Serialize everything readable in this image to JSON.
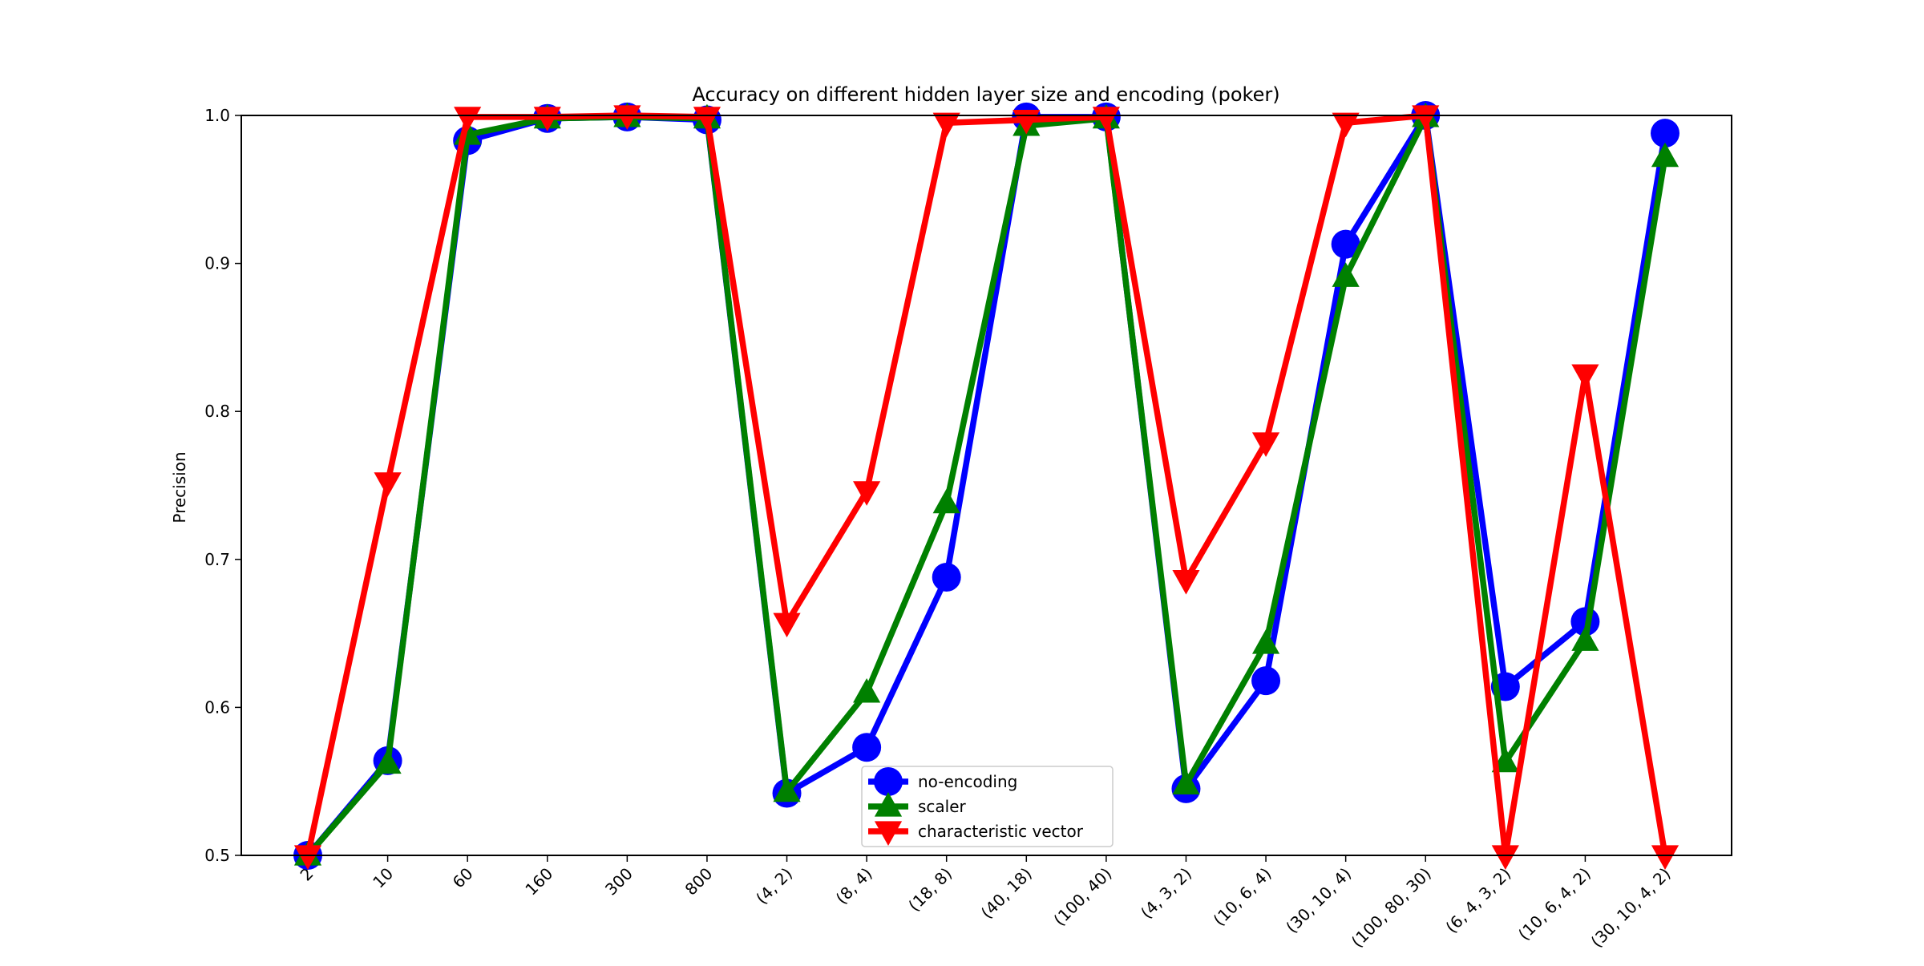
{
  "chart_data": {
    "type": "line",
    "title": "Accuracy on different hidden layer size and encoding (poker)",
    "xlabel": "",
    "ylabel": "Precision",
    "ylim": [
      0.5,
      1.0
    ],
    "yticks": [
      "0.5",
      "0.6",
      "0.7",
      "0.8",
      "0.9",
      "1.0"
    ],
    "grid": false,
    "legend_position": "bottom-center",
    "categories": [
      "2",
      "10",
      "60",
      "160",
      "300",
      "800",
      "(4, 2)",
      "(8, 4)",
      "(18, 8)",
      "(40, 18)",
      "(100, 40)",
      "(4, 3, 2)",
      "(10, 6, 4)",
      "(30, 10, 4)",
      "(100, 80, 30)",
      "(6, 4, 3, 2)",
      "(10, 6, 4, 2)",
      "(30, 10, 4, 2)"
    ],
    "series": [
      {
        "name": "no-encoding",
        "color": "#0000ff",
        "marker": "circle",
        "values": [
          0.5,
          0.564,
          0.983,
          0.998,
          0.999,
          0.997,
          0.542,
          0.573,
          0.688,
          0.999,
          0.999,
          0.545,
          0.618,
          0.913,
          1.0,
          0.614,
          0.658,
          0.988
        ]
      },
      {
        "name": "scaler",
        "color": "#008000",
        "marker": "triangle-up",
        "values": [
          0.5,
          0.562,
          0.987,
          0.998,
          0.999,
          0.998,
          0.543,
          0.61,
          0.738,
          0.993,
          0.998,
          0.548,
          0.643,
          0.891,
          0.999,
          0.563,
          0.645,
          0.972
        ]
      },
      {
        "name": "characteristic vector",
        "color": "#ff0000",
        "marker": "triangle-down",
        "values": [
          0.5,
          0.752,
          0.999,
          0.999,
          1.0,
          0.999,
          0.657,
          0.746,
          0.995,
          0.997,
          0.999,
          0.686,
          0.779,
          0.995,
          1.0,
          0.5,
          0.825,
          0.5
        ]
      }
    ]
  }
}
